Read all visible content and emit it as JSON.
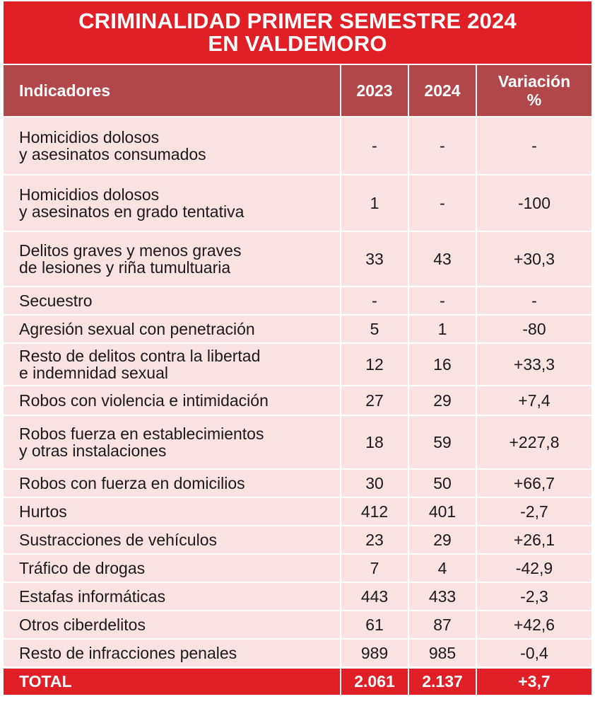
{
  "title": {
    "line1": "CRIMINALIDAD PRIMER SEMESTRE 2024",
    "line2": "EN VALDEMORO"
  },
  "header": {
    "indicator": "Indicadores",
    "year1": "2023",
    "year2": "2024",
    "variation_line1": "Variación",
    "variation_line2": "%"
  },
  "rows": [
    {
      "line1": "Homicidios dolosos",
      "line2": "y asesinatos consumados",
      "y2023": "-",
      "y2024": "-",
      "variation": "-"
    },
    {
      "line1": "Homicidios dolosos",
      "line2": "y asesinatos en grado tentativa",
      "y2023": "1",
      "y2024": "-",
      "variation": "-100"
    },
    {
      "line1": "Delitos graves y menos graves",
      "line2": "de lesiones y riña tumultuaria",
      "y2023": "33",
      "y2024": "43",
      "variation": "+30,3"
    },
    {
      "line1": "Secuestro",
      "line2": "",
      "y2023": "-",
      "y2024": "-",
      "variation": "-"
    },
    {
      "line1": "Agresión sexual con penetración",
      "line2": "",
      "y2023": "5",
      "y2024": "1",
      "variation": "-80"
    },
    {
      "line1": "Resto de delitos contra la libertad",
      "line2": "e indemnidad sexual",
      "y2023": "12",
      "y2024": "16",
      "variation": "+33,3"
    },
    {
      "line1": "Robos con violencia e intimidación",
      "line2": "",
      "y2023": "27",
      "y2024": "29",
      "variation": "+7,4"
    },
    {
      "line1": "Robos fuerza en establecimientos",
      "line2": "y otras instalaciones",
      "y2023": "18",
      "y2024": "59",
      "variation": "+227,8"
    },
    {
      "line1": "Robos con fuerza en domicilios",
      "line2": "",
      "y2023": "30",
      "y2024": "50",
      "variation": "+66,7"
    },
    {
      "line1": "Hurtos",
      "line2": "",
      "y2023": "412",
      "y2024": "401",
      "variation": "-2,7"
    },
    {
      "line1": "Sustracciones de vehículos",
      "line2": "",
      "y2023": "23",
      "y2024": "29",
      "variation": "+26,1"
    },
    {
      "line1": "Tráfico de drogas",
      "line2": "",
      "y2023": "7",
      "y2024": "4",
      "variation": "-42,9"
    },
    {
      "line1": "Estafas informáticas",
      "line2": "",
      "y2023": "443",
      "y2024": "433",
      "variation": "-2,3"
    },
    {
      "line1": "Otros ciberdelitos",
      "line2": "",
      "y2023": "61",
      "y2024": "87",
      "variation": "+42,6"
    },
    {
      "line1": "Resto de infracciones penales",
      "line2": "",
      "y2023": "989",
      "y2024": "985",
      "variation": "-0,4"
    }
  ],
  "total": {
    "label": "TOTAL",
    "y2023": "2.061",
    "y2024": "2.137",
    "variation": "+3,7"
  },
  "colors": {
    "title_bg": "#e01f26",
    "header_bg": "#b2474a",
    "row_bg": "#f9e2e2",
    "total_bg": "#e01f26"
  }
}
